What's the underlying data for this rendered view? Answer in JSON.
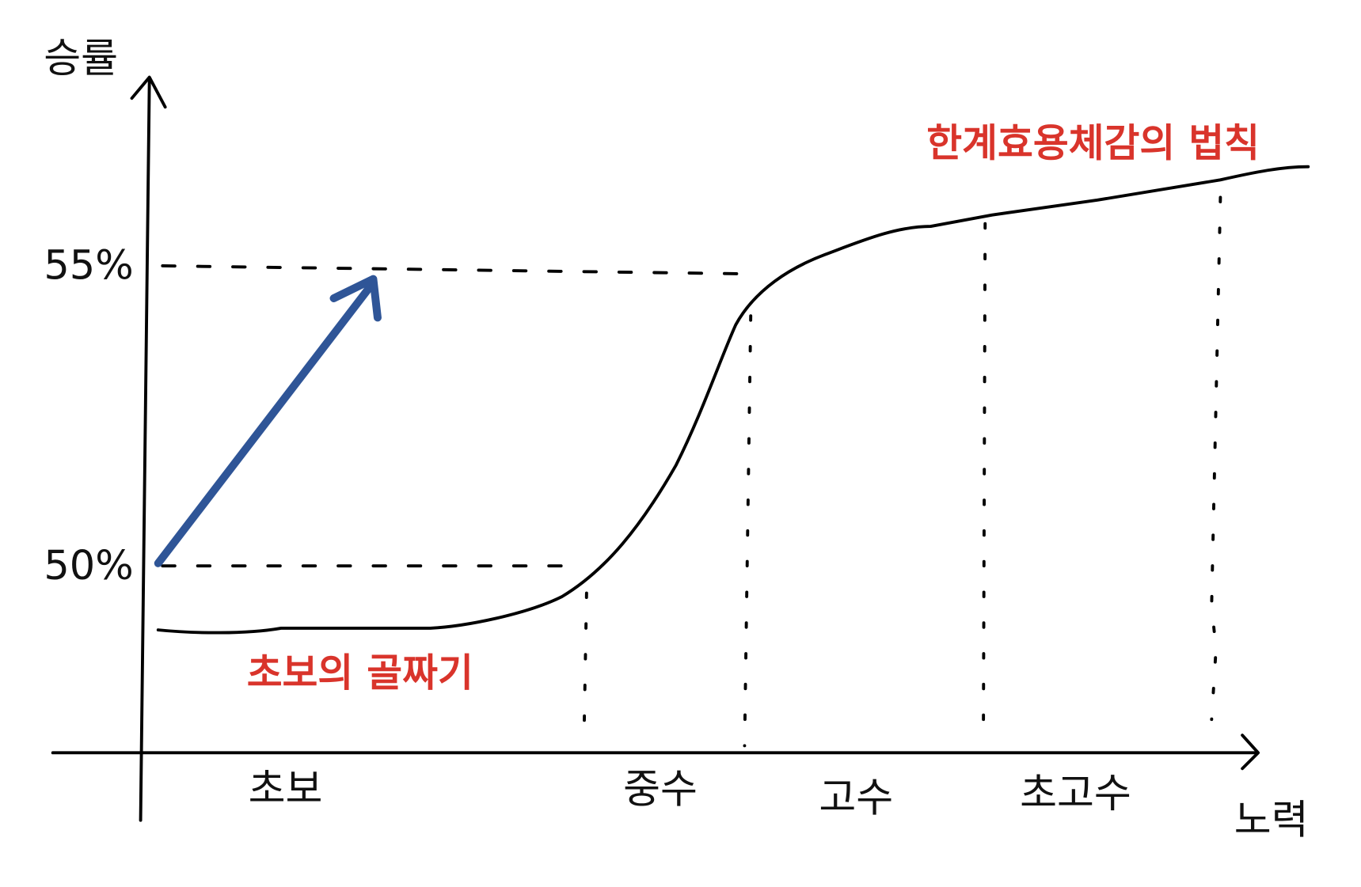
{
  "axes": {
    "y_label": "승률",
    "x_label": "노력"
  },
  "y_ticks": [
    "55%",
    "50%"
  ],
  "stages": [
    "초보",
    "중수",
    "고수",
    "초고수"
  ],
  "annotations": {
    "plateau": "한계효용체감의 법칙",
    "valley": "초보의 골짜기"
  }
}
